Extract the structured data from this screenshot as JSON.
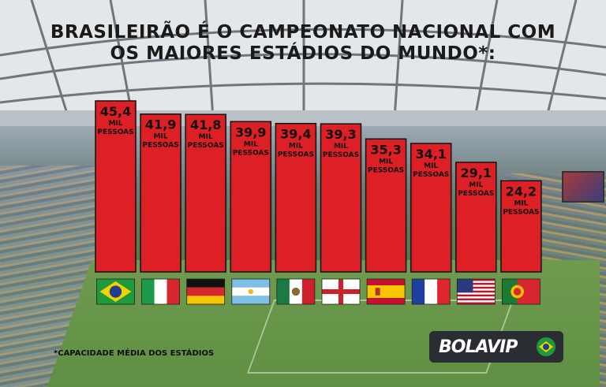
{
  "title": {
    "line1": "BRASILEIRÃO É O CAMPEONATO NACIONAL COM",
    "line2": "OS MAIORES ESTÁDIOS DO MUNDO*:"
  },
  "footnote": "*CAPACIDADE MÉDIA DOS ESTÁDIOS",
  "logo": {
    "text": "BOLAVIP"
  },
  "colors": {
    "bar": "#dd1f26",
    "bar_outline": "#111111",
    "title": "#1a1a1a"
  },
  "chart_data": {
    "type": "bar",
    "title": "BRASILEIRÃO É O CAMPEONATO NACIONAL COM OS MAIORES ESTÁDIOS DO MUNDO*:",
    "categories": [
      "Brasil",
      "Itália",
      "Alemanha",
      "Argentina",
      "México",
      "Inglaterra",
      "Espanha",
      "França",
      "Estados Unidos",
      "Portugal"
    ],
    "flags": [
      "brazil-flag",
      "italy-flag",
      "germany-flag",
      "argentina-flag",
      "mexico-flag",
      "england-flag",
      "spain-flag",
      "france-flag",
      "usa-flag",
      "portugal-flag"
    ],
    "values": [
      45.4,
      41.9,
      41.8,
      39.9,
      39.4,
      39.3,
      35.3,
      34.1,
      29.1,
      24.2
    ],
    "value_labels": [
      "45,4",
      "41,9",
      "41,8",
      "39,9",
      "39,4",
      "39,3",
      "35,3",
      "34,1",
      "29,1",
      "24,2"
    ],
    "unit_line1": "MIL",
    "unit_line2": "PESSOAS",
    "xlabel": "",
    "ylabel": "",
    "ylim": [
      0,
      50
    ],
    "grid": false,
    "legend": "none"
  }
}
